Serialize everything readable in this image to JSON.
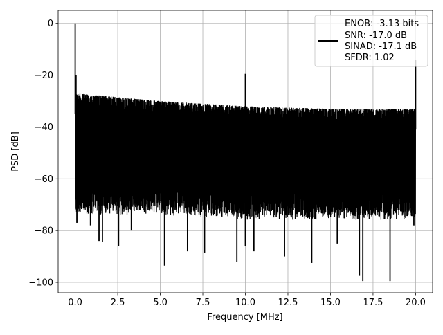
{
  "chart_data": {
    "type": "line",
    "title": "",
    "xlabel": "Frequency [MHz]",
    "ylabel": "PSD [dB]",
    "xlim": [
      -1.0,
      21.0
    ],
    "ylim": [
      -104.0,
      5.0
    ],
    "xticks": [
      0.0,
      2.5,
      5.0,
      7.5,
      10.0,
      12.5,
      15.0,
      17.5,
      20.0
    ],
    "xtick_labels": [
      "0.0",
      "2.5",
      "5.0",
      "7.5",
      "10.0",
      "12.5",
      "15.0",
      "17.5",
      "20.0"
    ],
    "yticks": [
      0,
      -20,
      -40,
      -60,
      -80,
      -100
    ],
    "ytick_labels": [
      "0",
      "−20",
      "−40",
      "−60",
      "−80",
      "−100"
    ],
    "grid": true,
    "legend": {
      "position": "top-right",
      "line_label": "ENOB: -3.13 bits",
      "extra_lines": [
        "SNR: -17.0 dB",
        "SINAD: -17.1 dB",
        "SFDR: 1.02"
      ]
    },
    "series": [
      {
        "color": "#000000",
        "style": "dense noise spectrum",
        "noise_upper_db": [
          [
            0.0,
            -27
          ],
          [
            5.0,
            -30
          ],
          [
            10.0,
            -32
          ],
          [
            15.0,
            -33
          ],
          [
            20.0,
            -33
          ]
        ],
        "noise_lower_db": [
          [
            0.0,
            -70
          ],
          [
            5.0,
            -70
          ],
          [
            10.0,
            -72
          ],
          [
            15.0,
            -72
          ],
          [
            20.0,
            -72
          ]
        ],
        "peaks": [
          {
            "x": 0.0,
            "y": 0.0
          },
          {
            "x": 0.05,
            "y": -20.0
          },
          {
            "x": 10.0,
            "y": -19.5
          },
          {
            "x": 20.0,
            "y": -14.0
          }
        ],
        "dips": [
          {
            "x": 0.1,
            "y": -77.0
          },
          {
            "x": 0.9,
            "y": -78.0
          },
          {
            "x": 1.4,
            "y": -84.0
          },
          {
            "x": 1.6,
            "y": -84.5
          },
          {
            "x": 2.55,
            "y": -86.0
          },
          {
            "x": 3.3,
            "y": -80.0
          },
          {
            "x": 5.25,
            "y": -93.5
          },
          {
            "x": 6.6,
            "y": -88.0
          },
          {
            "x": 7.6,
            "y": -88.5
          },
          {
            "x": 9.5,
            "y": -92.0
          },
          {
            "x": 10.0,
            "y": -86.0
          },
          {
            "x": 10.5,
            "y": -88.0
          },
          {
            "x": 12.3,
            "y": -90.0
          },
          {
            "x": 13.9,
            "y": -92.5
          },
          {
            "x": 15.4,
            "y": -85.0
          },
          {
            "x": 16.7,
            "y": -97.5
          },
          {
            "x": 16.9,
            "y": -99.5
          },
          {
            "x": 18.5,
            "y": -99.5
          },
          {
            "x": 19.9,
            "y": -78.0
          }
        ]
      }
    ]
  }
}
